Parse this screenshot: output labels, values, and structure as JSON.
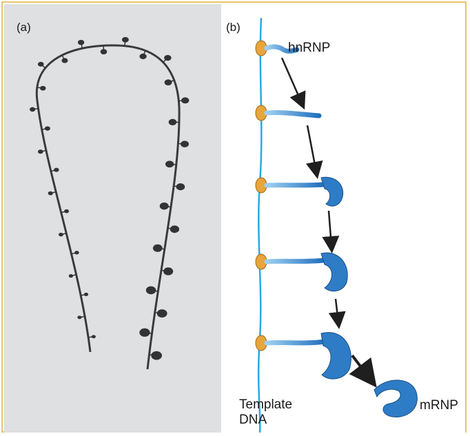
{
  "panel_a": {
    "label": "(a)"
  },
  "panel_b": {
    "label": "(b)",
    "hnrnp_label": "hnRNP",
    "mrnp_label": "mRNP",
    "template_label_line1": "Template",
    "template_label_line2": "DNA"
  },
  "colors": {
    "border": "#e8c46a",
    "panel_a_bg": "#dfe0e1",
    "fiber": "#3a3a3a",
    "dna": "#29a9e0",
    "polymerase": "#e8a53c",
    "rnp_blue": "#2e7cc6",
    "arrow": "#1f1f1f"
  }
}
